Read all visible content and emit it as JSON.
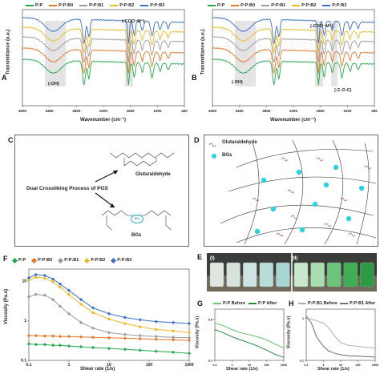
{
  "panels": {
    "A": {
      "label": "A",
      "legend": [
        {
          "name": "P:P",
          "color": "#22a84a"
        },
        {
          "name": "P:P:B0",
          "color": "#e87424"
        },
        {
          "name": "P:P:B1",
          "color": "#9a9a9a"
        },
        {
          "name": "P:P:B2",
          "color": "#f0b820"
        },
        {
          "name": "P:P:B3",
          "color": "#3a6fc8"
        }
      ],
      "ylabel": "Transmittance (a.u.)",
      "xlabel": "Wavenumber (cm⁻¹)",
      "xticks": [
        "4000",
        "3400",
        "2800",
        "2200",
        "1600",
        "1000",
        "400"
      ],
      "annotations": {
        "oh": "(-OH)",
        "coo": "(-COO⁻M⁺)"
      }
    },
    "B": {
      "label": "B",
      "legend": [
        {
          "name": "P:P",
          "color": "#22a84a"
        },
        {
          "name": "P:P:B0",
          "color": "#e87424"
        },
        {
          "name": "P:P:B1",
          "color": "#9a9a9a"
        },
        {
          "name": "P:P:B2",
          "color": "#f0b820"
        },
        {
          "name": "P:P:B3",
          "color": "#3a6fc8"
        }
      ],
      "ylabel": "Transmittance (a.u.)",
      "xlabel": "Wavenumber (cm⁻¹)",
      "xticks": [
        "4000",
        "3400",
        "2800",
        "2200",
        "1600",
        "1000",
        "400"
      ],
      "annotations": {
        "oh": "(-OH)",
        "coo": "(-COO⁻M⁺)",
        "coc": "(-C-O-C)"
      }
    },
    "C": {
      "label": "C",
      "process_text": "Dual Crossliking Process of PGS",
      "glutaraldehyde": "Glutaraldehyde",
      "bgs": "BGs",
      "bgs_node": "BGs"
    },
    "D": {
      "label": "D",
      "legend_glut": "Glutaraldehyde",
      "legend_bgs": "BGs"
    },
    "E": {
      "label": "E",
      "sub_i": "(I)",
      "sub_ii": "(II)"
    },
    "F": {
      "label": "F",
      "ylabel": "Viscosity (Pa.s)",
      "xlabel": "Shear rate (1/s)",
      "yticks": [
        "10",
        "1",
        "0.1"
      ],
      "xticks": [
        "0.1",
        "1",
        "10",
        "100",
        "1000"
      ]
    },
    "G": {
      "label": "G",
      "ylabel": "Viscosity (Pa.s)",
      "xlabel": "Shear rate (1/s)",
      "legend": [
        {
          "name": "P:P Before",
          "color": "#6cc46c"
        },
        {
          "name": "P:P After",
          "color": "#1f8a3a"
        }
      ],
      "yticks": [
        "0.5",
        "0.1"
      ],
      "xticks": [
        "0.1",
        "1",
        "10",
        "100",
        "1000"
      ]
    },
    "H": {
      "label": "H",
      "ylabel": "Viscosity (Pa.s)",
      "xlabel": "Shear rate (1/s)",
      "legend": [
        {
          "name": "P:P:B1 Before",
          "color": "#b0b0b0"
        },
        {
          "name": "P:P:B1 After",
          "color": "#6e6e6e"
        }
      ],
      "yticks": [
        "1",
        "0.1"
      ],
      "xticks": [
        "0.1",
        "1",
        "10",
        "100",
        "1000"
      ]
    }
  },
  "chart_data": [
    {
      "type": "line",
      "panel": "F",
      "xscale": "log",
      "yscale": "log",
      "xlim": [
        0.1,
        1000
      ],
      "ylim": [
        0.1,
        20
      ],
      "x": [
        0.1,
        0.15,
        0.25,
        0.4,
        0.6,
        1,
        2,
        4,
        10,
        25,
        60,
        150,
        400,
        1000
      ],
      "series": [
        {
          "name": "P:P",
          "color": "#22a84a",
          "marker": "diamond",
          "values": [
            0.26,
            0.25,
            0.25,
            0.24,
            0.24,
            0.23,
            0.22,
            0.21,
            0.2,
            0.19,
            0.18,
            0.17,
            0.16,
            0.15
          ]
        },
        {
          "name": "P:P:B0",
          "color": "#e87424",
          "marker": "diamond",
          "values": [
            0.42,
            0.42,
            0.41,
            0.41,
            0.4,
            0.4,
            0.39,
            0.38,
            0.37,
            0.36,
            0.35,
            0.34,
            0.33,
            0.32
          ]
        },
        {
          "name": "P:P:B1",
          "color": "#9a9a9a",
          "marker": "diamond",
          "values": [
            4.0,
            4.6,
            4.4,
            3.4,
            2.3,
            1.5,
            0.9,
            0.65,
            0.5,
            0.45,
            0.42,
            0.4,
            0.38,
            0.37
          ]
        },
        {
          "name": "P:P:B2",
          "color": "#f0b820",
          "marker": "diamond",
          "values": [
            10.5,
            12.5,
            11.8,
            9.5,
            7.0,
            4.6,
            2.6,
            1.6,
            1.1,
            0.85,
            0.7,
            0.6,
            0.55,
            0.5
          ]
        },
        {
          "name": "P:P:B3",
          "color": "#3a6fc8",
          "marker": "diamond",
          "values": [
            12.0,
            14.5,
            13.8,
            11.2,
            8.4,
            5.8,
            3.4,
            2.1,
            1.5,
            1.2,
            1.05,
            0.95,
            0.9,
            0.85
          ]
        }
      ]
    },
    {
      "type": "line",
      "panel": "G",
      "xscale": "log",
      "xlim": [
        0.1,
        1000
      ],
      "ylim": [
        0.1,
        0.6
      ],
      "x": [
        0.1,
        0.3,
        1,
        3,
        10,
        30,
        100,
        300,
        1000
      ],
      "series": [
        {
          "name": "P:P Before",
          "color": "#6cc46c",
          "values": [
            0.46,
            0.44,
            0.4,
            0.37,
            0.35,
            0.33,
            0.3,
            0.26,
            0.22
          ]
        },
        {
          "name": "P:P After",
          "color": "#1f8a3a",
          "values": [
            0.4,
            0.37,
            0.33,
            0.3,
            0.27,
            0.24,
            0.2,
            0.16,
            0.13
          ]
        }
      ]
    },
    {
      "type": "line",
      "panel": "H",
      "xscale": "log",
      "xlim": [
        0.1,
        1000
      ],
      "ylim": [
        0.1,
        1.2
      ],
      "x": [
        0.1,
        0.2,
        0.4,
        1,
        2,
        5,
        10,
        30,
        100,
        300,
        1000
      ],
      "series": [
        {
          "name": "P:P:B1 Before",
          "color": "#b0b0b0",
          "values": [
            1.0,
            0.98,
            0.95,
            0.9,
            0.8,
            0.6,
            0.48,
            0.42,
            0.4,
            0.38,
            0.37
          ]
        },
        {
          "name": "P:P:B1 After",
          "color": "#6e6e6e",
          "values": [
            1.05,
            0.9,
            0.6,
            0.4,
            0.3,
            0.25,
            0.22,
            0.2,
            0.19,
            0.18,
            0.17
          ]
        }
      ]
    }
  ]
}
